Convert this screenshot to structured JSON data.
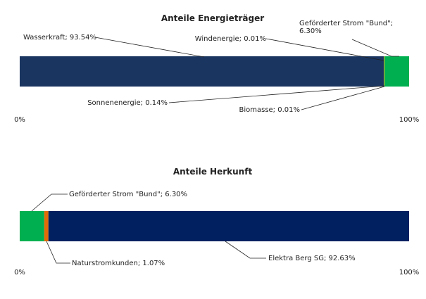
{
  "chart_data": [
    {
      "type": "bar",
      "orientation": "horizontal",
      "stacked": true,
      "title": "Anteile Energieträger",
      "xlim": [
        0,
        100
      ],
      "ticks": [
        "0%",
        "100%"
      ],
      "grid": false,
      "segments": [
        {
          "label": "Wasserkraft; 93.54%",
          "value": 93.54,
          "color": "#1a3560"
        },
        {
          "label": "Windenergie; 0.01%",
          "value": 0.01,
          "color": "#2e7d32"
        },
        {
          "label": "Sonnenenergie; 0.14%",
          "value": 0.14,
          "color": "#ffd600"
        },
        {
          "label": "Biomasse; 0.01%",
          "value": 0.01,
          "color": "#6d4c41"
        },
        {
          "label": "Geförderter Strom \"Bund\";",
          "label2": "6.30%",
          "value": 6.3,
          "color": "#00b050"
        }
      ]
    },
    {
      "type": "bar",
      "orientation": "horizontal",
      "stacked": true,
      "title": "Anteile Herkunft",
      "xlim": [
        0,
        100
      ],
      "ticks": [
        "0%",
        "100%"
      ],
      "grid": false,
      "segments": [
        {
          "label": "Geförderter Strom \"Bund\"; 6.30%",
          "value": 6.3,
          "color": "#00b050"
        },
        {
          "label": "Naturstromkunden; 1.07%",
          "value": 1.07,
          "color": "#e36c09"
        },
        {
          "label": "Elektra Berg SG; 92.63%",
          "value": 92.63,
          "color": "#002060"
        }
      ]
    }
  ]
}
